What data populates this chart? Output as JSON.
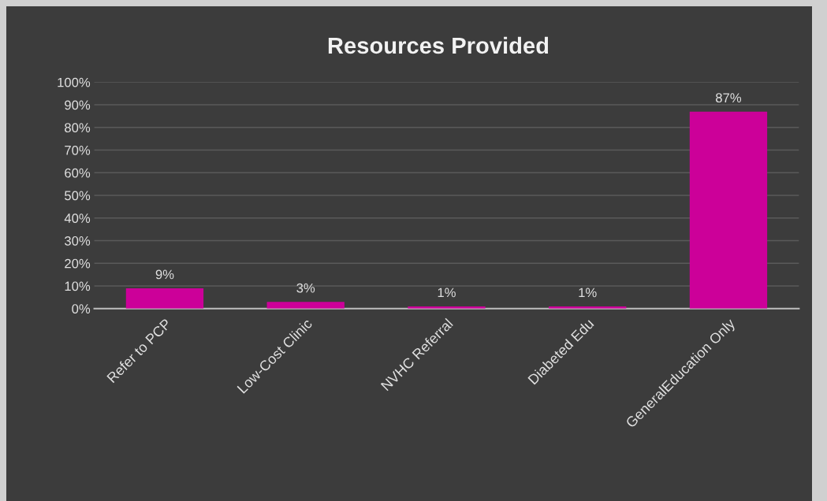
{
  "chart_data": {
    "type": "bar",
    "title": "Resources Provided",
    "categories": [
      "Refer to PCP",
      "Low-Cost Clinic",
      "NVHC Referral",
      "Diabeted Edu",
      "GeneralEducation Only"
    ],
    "values": [
      9,
      3,
      1,
      1,
      87
    ],
    "value_labels": [
      "9%",
      "3%",
      "1%",
      "1%",
      "87%"
    ],
    "color": "#cc0099",
    "ylim": [
      0,
      100
    ],
    "yticks": [
      {
        "value": 0,
        "label": "0%"
      },
      {
        "value": 10,
        "label": "10%"
      },
      {
        "value": 20,
        "label": "20%"
      },
      {
        "value": 30,
        "label": "30%"
      },
      {
        "value": 40,
        "label": "40%"
      },
      {
        "value": 50,
        "label": "50%"
      },
      {
        "value": 60,
        "label": "60%"
      },
      {
        "value": 70,
        "label": "70%"
      },
      {
        "value": 80,
        "label": "80%"
      },
      {
        "value": 90,
        "label": "90%"
      },
      {
        "value": 100,
        "label": "100%"
      }
    ],
    "grid": "y"
  }
}
